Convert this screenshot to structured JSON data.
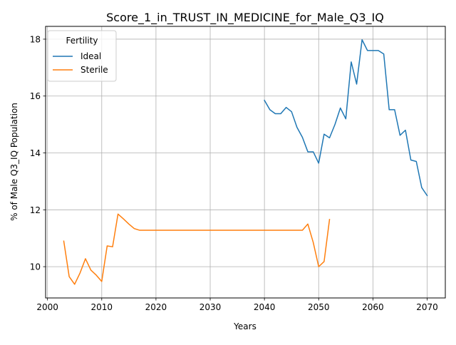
{
  "chart_data": {
    "type": "line",
    "title": "Score_1_in_TRUST_IN_MEDICINE_for_Male_Q3_IQ",
    "xlabel": "Years",
    "ylabel": "% of Male Q3_IQ Population",
    "xlim": [
      1999.65,
      2073.35
    ],
    "ylim": [
      8.9,
      18.45
    ],
    "x_ticks": [
      2000,
      2010,
      2020,
      2030,
      2040,
      2050,
      2060,
      2070
    ],
    "y_ticks": [
      10,
      12,
      14,
      16,
      18
    ],
    "grid": true,
    "legend": {
      "title": "Fertility",
      "placement": "upper-left"
    },
    "series": [
      {
        "name": "Ideal",
        "color": "#1f77b4",
        "points": [
          [
            2040,
            15.85
          ],
          [
            2041,
            15.52
          ],
          [
            2042,
            15.38
          ],
          [
            2043,
            15.38
          ],
          [
            2044,
            15.6
          ],
          [
            2045,
            15.45
          ],
          [
            2046,
            14.9
          ],
          [
            2047,
            14.55
          ],
          [
            2048,
            14.04
          ],
          [
            2049,
            14.04
          ],
          [
            2050,
            13.64
          ],
          [
            2051,
            14.66
          ],
          [
            2052,
            14.53
          ],
          [
            2053,
            15.0
          ],
          [
            2054,
            15.58
          ],
          [
            2055,
            15.2
          ],
          [
            2056,
            17.2
          ],
          [
            2057,
            16.42
          ],
          [
            2058,
            17.98
          ],
          [
            2059,
            17.6
          ],
          [
            2060,
            17.6
          ],
          [
            2061,
            17.6
          ],
          [
            2062,
            17.48
          ],
          [
            2063,
            15.52
          ],
          [
            2064,
            15.52
          ],
          [
            2065,
            14.62
          ],
          [
            2066,
            14.8
          ],
          [
            2067,
            13.75
          ],
          [
            2068,
            13.7
          ],
          [
            2069,
            12.78
          ],
          [
            2070,
            12.5
          ]
        ]
      },
      {
        "name": "Sterile",
        "color": "#ff7f0e",
        "points": [
          [
            2003,
            10.9
          ],
          [
            2004,
            9.65
          ],
          [
            2005,
            9.38
          ],
          [
            2006,
            9.78
          ],
          [
            2007,
            10.28
          ],
          [
            2008,
            9.88
          ],
          [
            2009,
            9.7
          ],
          [
            2010,
            9.48
          ],
          [
            2011,
            10.73
          ],
          [
            2012,
            10.7
          ],
          [
            2013,
            11.85
          ],
          [
            2014,
            11.68
          ],
          [
            2015,
            11.5
          ],
          [
            2016,
            11.34
          ],
          [
            2017,
            11.28
          ],
          [
            2018,
            11.28
          ],
          [
            2020,
            11.28
          ],
          [
            2025,
            11.28
          ],
          [
            2030,
            11.28
          ],
          [
            2035,
            11.28
          ],
          [
            2040,
            11.28
          ],
          [
            2045,
            11.28
          ],
          [
            2047,
            11.28
          ],
          [
            2048,
            11.5
          ],
          [
            2049,
            10.85
          ],
          [
            2050,
            10.0
          ],
          [
            2051,
            10.18
          ],
          [
            2052,
            11.66
          ]
        ]
      }
    ]
  }
}
